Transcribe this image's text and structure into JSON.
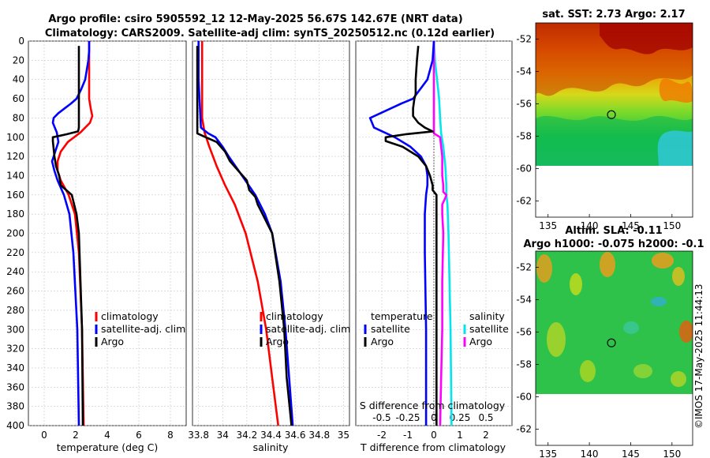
{
  "titles": {
    "line1": "Argo profile: csiro 5905592_12 12-May-2025 56.67S 142.67E (NRT data)",
    "line2": "Climatology: CARS2009. Satellite-adj clim: synTS_20250512.nc (0.12d earlier)"
  },
  "colors": {
    "climatology": "#ff0000",
    "satellite": "#0000ff",
    "argo": "#000000",
    "salinity_satellite": "#00e5ee",
    "argo_salinity": "#ff00ff"
  },
  "legends": {
    "profile": [
      "climatology",
      "satellite-adj. clim",
      "Argo"
    ],
    "diff_temperature_title": "temperature",
    "diff_salinity_title": "salinity",
    "diff_items": [
      "satellite",
      "Argo"
    ]
  },
  "watermark": "©IMOS 17-May-2025 11:44:13",
  "map_sst": {
    "title": "sat. SST: 2.73 Argo: 2.17",
    "lon_ticks": [
      "135",
      "140",
      "145",
      "150"
    ],
    "lat_ticks": [
      "-52",
      "-54",
      "-56",
      "-58",
      "-60",
      "-62"
    ],
    "lon_range": [
      133.5,
      152.5
    ],
    "lat_range": [
      -51,
      -63
    ],
    "data_lat_limit": -60,
    "argo_position": {
      "lon": 142.67,
      "lat": -56.67
    }
  },
  "map_sla": {
    "title_line1": "Altim. SLA: -0.11",
    "title_line2": "Argo h1000: -0.075 h2000: -0.1",
    "lon_ticks": [
      "135",
      "140",
      "145",
      "150"
    ],
    "lat_ticks": [
      "-52",
      "-54",
      "-56",
      "-58",
      "-60",
      "-62"
    ],
    "lon_range": [
      133.5,
      152.5
    ],
    "lat_range": [
      -51,
      -63
    ],
    "data_lat_limit": -60,
    "argo_position": {
      "lon": 142.67,
      "lat": -56.67
    }
  },
  "chart_data": [
    {
      "type": "line",
      "panel": "temperature",
      "xlabel": "temperature (deg C)",
      "ylabel": "",
      "xlim": [
        -1,
        9
      ],
      "ylim": [
        0,
        400
      ],
      "xticks": [
        "0",
        "2",
        "4",
        "6",
        "8"
      ],
      "yticks": [
        "0",
        "20",
        "40",
        "60",
        "80",
        "100",
        "120",
        "140",
        "160",
        "180",
        "200",
        "220",
        "240",
        "260",
        "280",
        "300",
        "320",
        "340",
        "360",
        "380",
        "400"
      ],
      "grid": true,
      "series": [
        {
          "name": "climatology",
          "depth": [
            0,
            20,
            40,
            60,
            70,
            78,
            85,
            95,
            105,
            115,
            125,
            135,
            145,
            160,
            180,
            220,
            300,
            400
          ],
          "values": [
            2.85,
            2.85,
            2.85,
            2.85,
            2.95,
            3.05,
            2.9,
            2.3,
            1.5,
            1.05,
            0.85,
            0.85,
            1.05,
            1.55,
            1.95,
            2.2,
            2.4,
            2.5
          ]
        },
        {
          "name": "satellite-adj. clim",
          "depth": [
            0,
            10,
            20,
            40,
            50,
            60,
            65,
            70,
            75,
            80,
            85,
            95,
            105,
            115,
            125,
            135,
            145,
            160,
            180,
            220,
            300,
            400
          ],
          "values": [
            2.85,
            2.85,
            2.8,
            2.6,
            2.35,
            2.05,
            1.7,
            1.3,
            0.9,
            0.6,
            0.55,
            0.8,
            0.9,
            0.7,
            0.5,
            0.65,
            0.85,
            1.25,
            1.6,
            1.85,
            2.1,
            2.2
          ]
        },
        {
          "name": "Argo",
          "depth": [
            5,
            30,
            60,
            80,
            90,
            94,
            97,
            100,
            104,
            112,
            120,
            130,
            140,
            150,
            160,
            170,
            180,
            200,
            250,
            300,
            400
          ],
          "values": [
            2.2,
            2.2,
            2.2,
            2.2,
            2.2,
            2.15,
            1.4,
            0.55,
            0.55,
            0.6,
            0.65,
            0.75,
            0.95,
            1.05,
            1.75,
            1.9,
            2.05,
            2.2,
            2.3,
            2.4,
            2.45
          ]
        }
      ]
    },
    {
      "type": "line",
      "panel": "salinity",
      "xlabel": "salinity",
      "ylabel": "",
      "xlim": [
        33.75,
        35.05
      ],
      "ylim": [
        0,
        400
      ],
      "xticks": [
        "33.8",
        "34",
        "34.2",
        "34.4",
        "34.6",
        "34.8",
        "35"
      ],
      "grid": true,
      "series": [
        {
          "name": "climatology",
          "depth": [
            0,
            40,
            80,
            95,
            110,
            130,
            150,
            170,
            200,
            250,
            300,
            350,
            400
          ],
          "values": [
            33.83,
            33.83,
            33.83,
            33.85,
            33.89,
            33.95,
            34.02,
            34.1,
            34.19,
            34.29,
            34.36,
            34.41,
            34.46
          ]
        },
        {
          "name": "satellite-adj. clim",
          "depth": [
            0,
            40,
            90,
            96,
            100,
            110,
            120,
            140,
            160,
            180,
            200,
            250,
            300,
            350,
            400
          ],
          "values": [
            33.8,
            33.8,
            33.82,
            33.88,
            33.94,
            34.0,
            34.05,
            34.16,
            34.27,
            34.35,
            34.41,
            34.48,
            34.52,
            34.55,
            34.58
          ]
        },
        {
          "name": "Argo",
          "depth": [
            5,
            40,
            90,
            96,
            100,
            105,
            115,
            125,
            135,
            145,
            155,
            162,
            170,
            180,
            200,
            250,
            300,
            350,
            400
          ],
          "values": [
            33.79,
            33.79,
            33.79,
            33.79,
            33.86,
            33.95,
            34.02,
            34.06,
            34.13,
            34.2,
            34.22,
            34.27,
            34.29,
            34.33,
            34.41,
            34.47,
            34.51,
            34.53,
            34.57
          ]
        }
      ]
    },
    {
      "type": "line",
      "panel": "difference",
      "xlabel": "T difference from climatology",
      "xlabel_top": "S difference from climatology",
      "ylabel": "",
      "xlim": [
        -3,
        3
      ],
      "ylim": [
        0,
        400
      ],
      "xticks": [
        "-2",
        "-1",
        "0",
        "1",
        "2"
      ],
      "top_xticks": [
        "-0.5",
        "-0.25",
        "0",
        "0.25",
        "0.5"
      ],
      "grid": true,
      "series": [
        {
          "name": "temperature satellite",
          "depth": [
            0,
            20,
            40,
            60,
            65,
            70,
            75,
            80,
            90,
            100,
            110,
            120,
            130,
            140,
            150,
            160,
            180,
            220,
            300,
            400
          ],
          "values": [
            0,
            -0.05,
            -0.25,
            -0.8,
            -1.25,
            -1.65,
            -2.05,
            -2.45,
            -2.3,
            -1.5,
            -0.9,
            -0.5,
            -0.3,
            -0.25,
            -0.25,
            -0.3,
            -0.35,
            -0.35,
            -0.3,
            -0.3
          ]
        },
        {
          "name": "temperature Argo",
          "depth": [
            5,
            20,
            40,
            55,
            60,
            70,
            78,
            85,
            90,
            94,
            97,
            100,
            104,
            110,
            120,
            130,
            140,
            150,
            155,
            160,
            175,
            200,
            250,
            300,
            400
          ],
          "values": [
            -0.6,
            -0.65,
            -0.7,
            -0.7,
            -0.75,
            -0.8,
            -0.8,
            -0.6,
            -0.35,
            -0.05,
            -1.1,
            -1.85,
            -1.85,
            -1.2,
            -0.6,
            -0.3,
            -0.15,
            -0.05,
            -0.05,
            0.1,
            0.1,
            0.1,
            0.1,
            0.1,
            0.1
          ]
        },
        {
          "name": "salinity satellite",
          "depth": [
            0,
            20,
            40,
            60,
            80,
            96,
            110,
            130,
            150,
            160,
            170,
            200,
            300,
            400
          ],
          "values": [
            0.0,
            0.01,
            0.03,
            0.05,
            0.06,
            0.07,
            0.09,
            0.11,
            0.12,
            0.12,
            0.13,
            0.14,
            0.16,
            0.17
          ]
        },
        {
          "name": "salinity Argo",
          "depth": [
            0,
            40,
            90,
            96,
            100,
            110,
            120,
            140,
            150,
            157,
            160,
            163,
            170,
            180,
            200,
            250,
            300,
            350,
            400
          ],
          "values": [
            0.0,
            0.0,
            0.0,
            0.0,
            0.06,
            0.07,
            0.08,
            0.08,
            0.09,
            0.09,
            0.12,
            0.11,
            0.08,
            0.08,
            0.09,
            0.08,
            0.08,
            0.07,
            0.06
          ]
        }
      ]
    }
  ]
}
